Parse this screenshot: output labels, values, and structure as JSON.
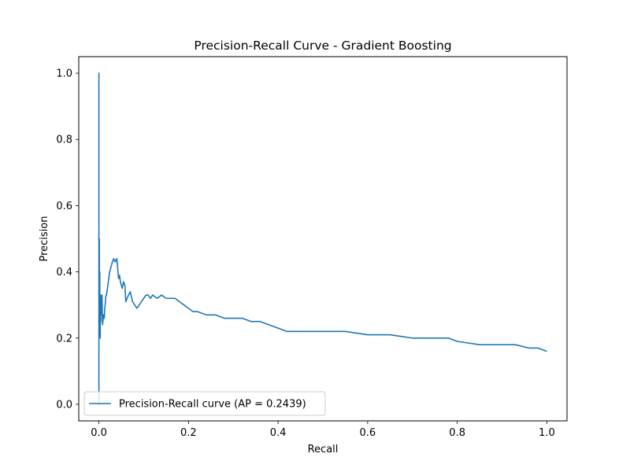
{
  "chart_data": {
    "type": "line",
    "title": "Precision-Recall Curve - Gradient Boosting",
    "xlabel": "Recall",
    "ylabel": "Precision",
    "xlim": [
      -0.045,
      1.045
    ],
    "ylim": [
      -0.05,
      1.05
    ],
    "xticks": [
      0.0,
      0.2,
      0.4,
      0.6,
      0.8,
      1.0
    ],
    "xtick_labels": [
      "0.0",
      "0.2",
      "0.4",
      "0.6",
      "0.8",
      "1.0"
    ],
    "yticks": [
      0.0,
      0.2,
      0.4,
      0.6,
      0.8,
      1.0
    ],
    "ytick_labels": [
      "0.0",
      "0.2",
      "0.4",
      "0.6",
      "0.8",
      "1.0"
    ],
    "grid": false,
    "legend_position": "lower-left",
    "color": "#1f77b4",
    "series": [
      {
        "name": "Precision-Recall curve (AP = 0.2439)",
        "x": [
          0.0,
          0.0,
          0.0,
          0.0,
          0.0,
          0.0,
          0.001,
          0.001,
          0.002,
          0.002,
          0.003,
          0.003,
          0.004,
          0.004,
          0.005,
          0.006,
          0.007,
          0.008,
          0.009,
          0.01,
          0.012,
          0.013,
          0.014,
          0.015,
          0.016,
          0.017,
          0.018,
          0.02,
          0.022,
          0.024,
          0.026,
          0.028,
          0.03,
          0.033,
          0.036,
          0.04,
          0.044,
          0.046,
          0.046,
          0.048,
          0.05,
          0.052,
          0.055,
          0.058,
          0.06,
          0.063,
          0.066,
          0.07,
          0.075,
          0.08,
          0.085,
          0.09,
          0.095,
          0.1,
          0.105,
          0.11,
          0.115,
          0.12,
          0.13,
          0.14,
          0.15,
          0.16,
          0.17,
          0.18,
          0.19,
          0.2,
          0.21,
          0.22,
          0.24,
          0.26,
          0.28,
          0.3,
          0.32,
          0.34,
          0.36,
          0.38,
          0.4,
          0.42,
          0.44,
          0.46,
          0.48,
          0.5,
          0.55,
          0.6,
          0.65,
          0.7,
          0.75,
          0.78,
          0.8,
          0.85,
          0.9,
          0.92,
          0.93,
          0.96,
          0.98,
          1.0
        ],
        "y": [
          0.03,
          1.0,
          0.0,
          0.26,
          0.5,
          0.26,
          0.5,
          0.25,
          0.4,
          0.33,
          0.2,
          0.29,
          0.25,
          0.33,
          0.27,
          0.29,
          0.33,
          0.24,
          0.25,
          0.27,
          0.26,
          0.29,
          0.3,
          0.32,
          0.33,
          0.33,
          0.34,
          0.36,
          0.38,
          0.4,
          0.41,
          0.42,
          0.43,
          0.44,
          0.43,
          0.44,
          0.38,
          0.38,
          0.39,
          0.37,
          0.36,
          0.35,
          0.37,
          0.36,
          0.31,
          0.32,
          0.33,
          0.34,
          0.31,
          0.3,
          0.29,
          0.3,
          0.31,
          0.32,
          0.33,
          0.33,
          0.32,
          0.33,
          0.32,
          0.33,
          0.32,
          0.32,
          0.32,
          0.31,
          0.3,
          0.29,
          0.28,
          0.28,
          0.27,
          0.27,
          0.26,
          0.26,
          0.26,
          0.25,
          0.25,
          0.24,
          0.23,
          0.22,
          0.22,
          0.22,
          0.22,
          0.22,
          0.22,
          0.21,
          0.21,
          0.2,
          0.2,
          0.2,
          0.19,
          0.18,
          0.18,
          0.18,
          0.18,
          0.17,
          0.17,
          0.16
        ]
      }
    ]
  }
}
